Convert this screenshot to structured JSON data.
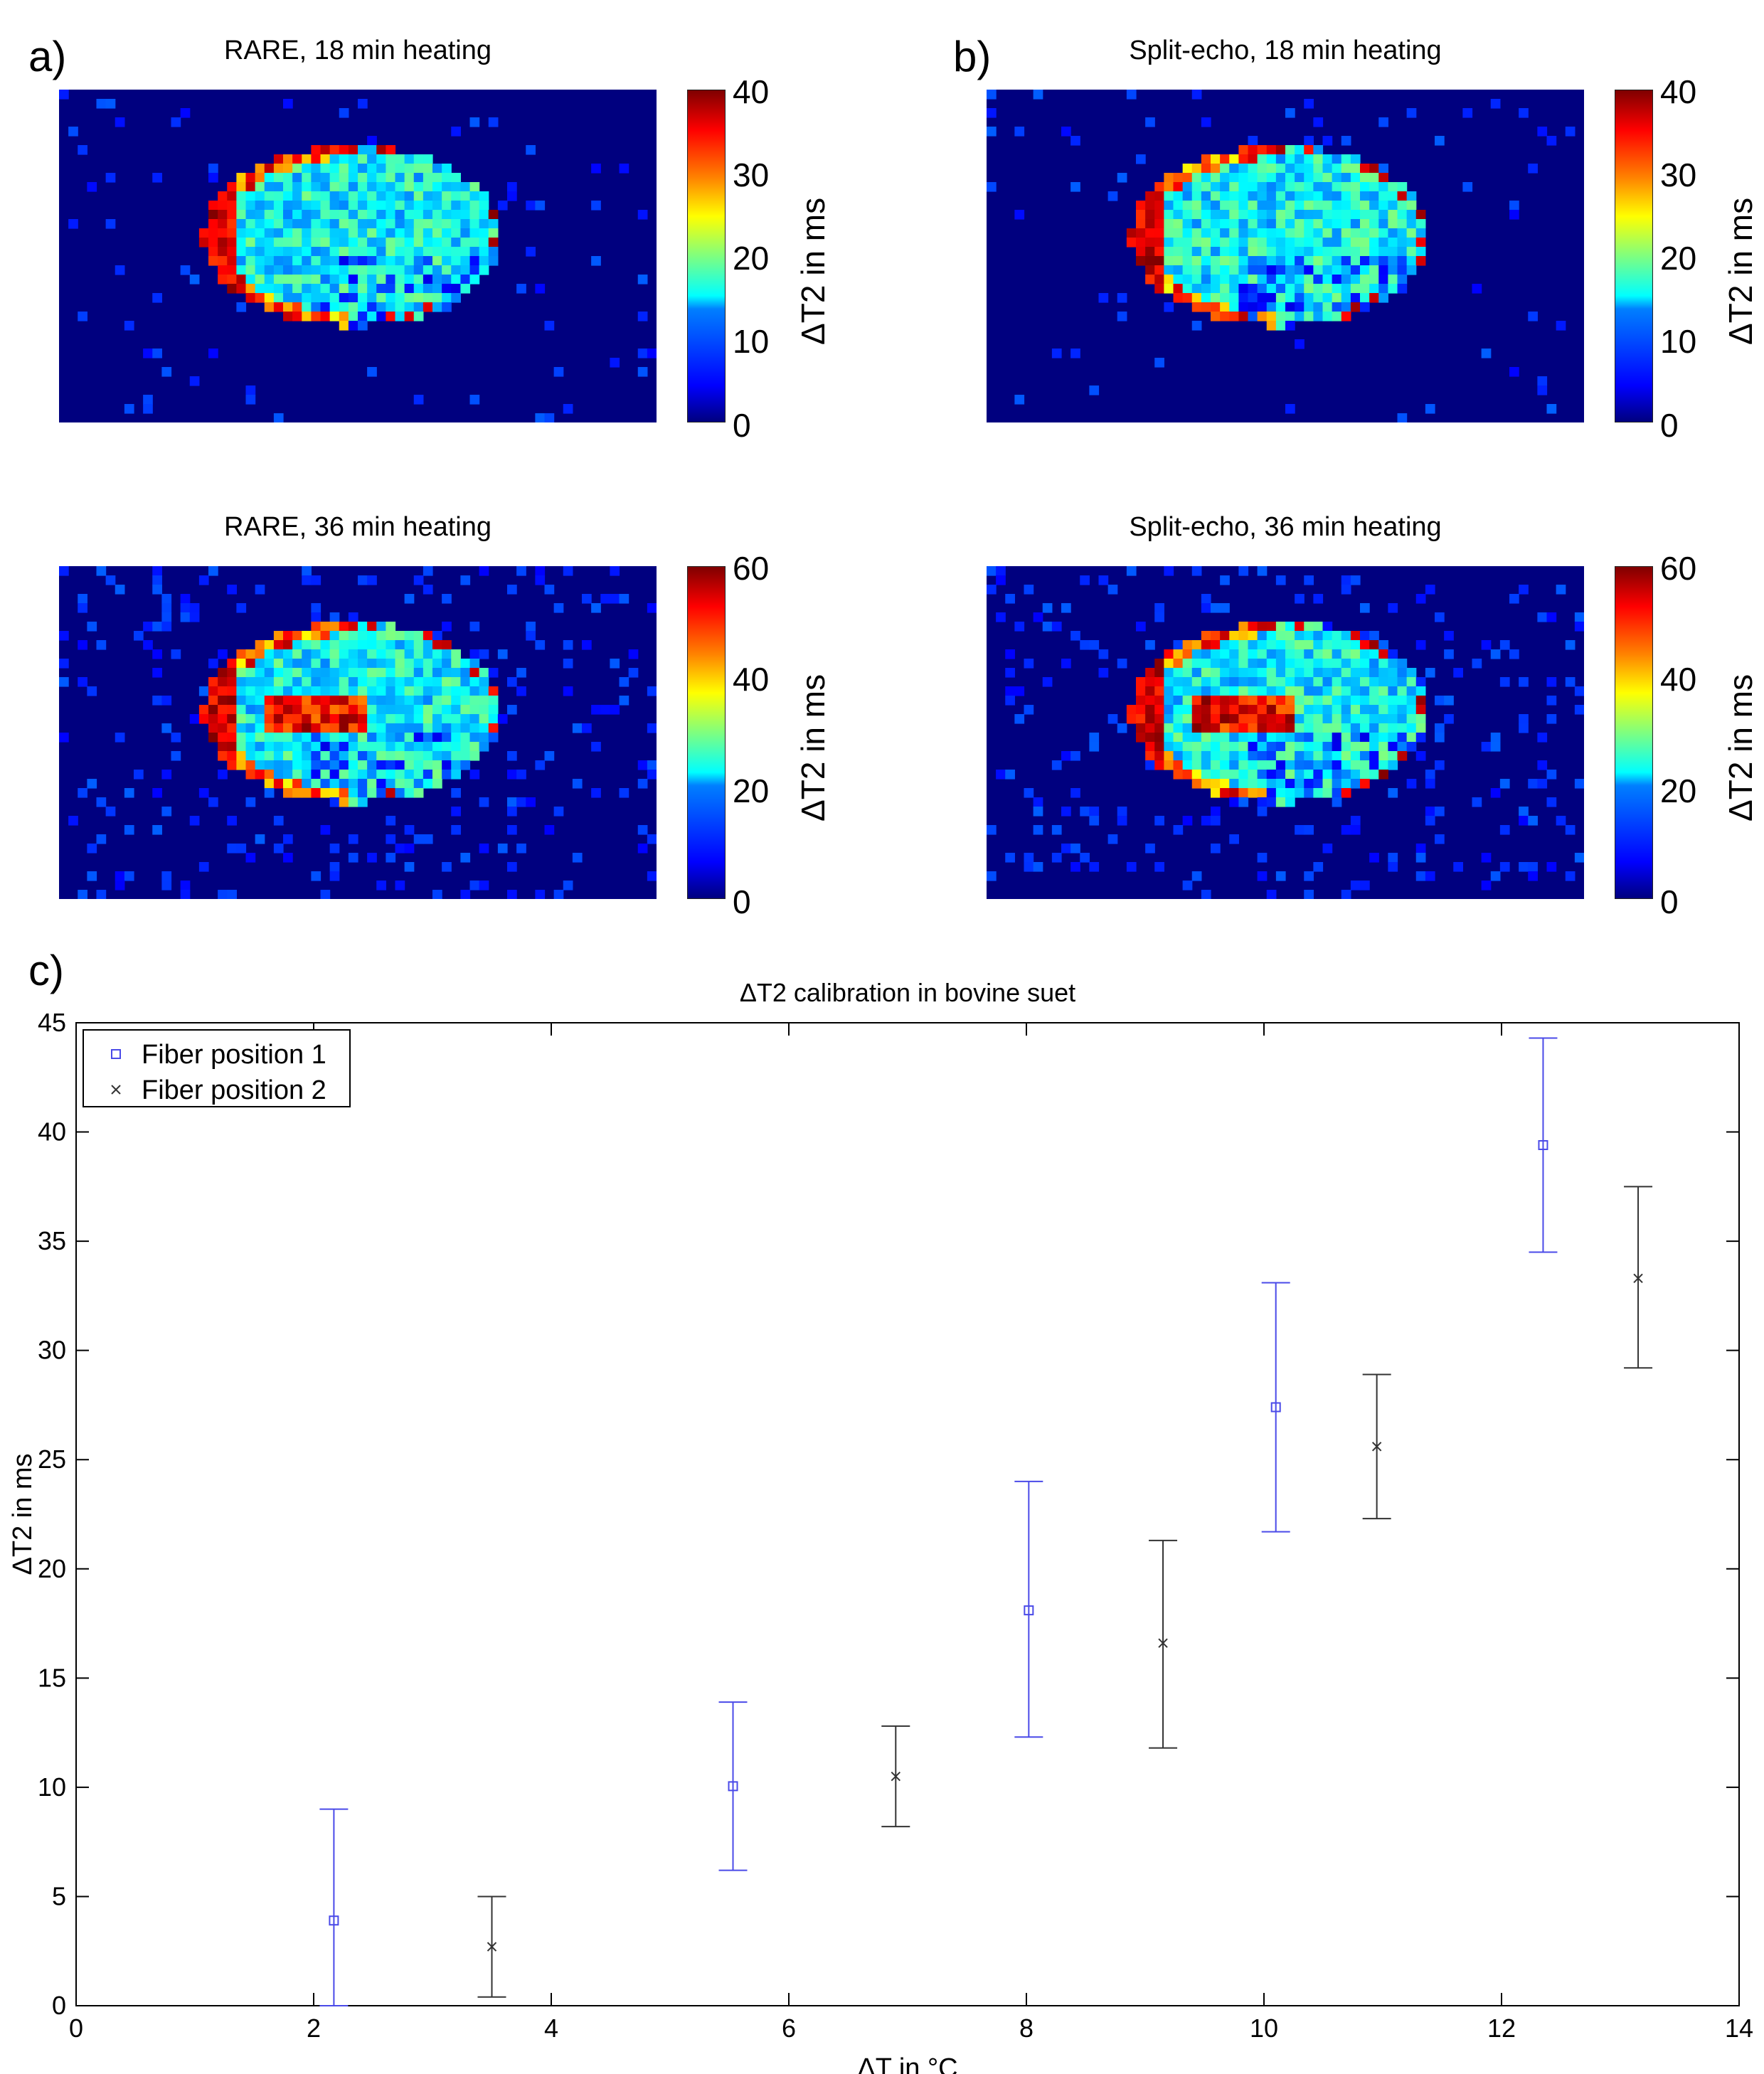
{
  "panels": {
    "a": {
      "letter": "a)"
    },
    "b": {
      "letter": "b)"
    },
    "c": {
      "letter": "c)"
    }
  },
  "maps": [
    {
      "id": "rare-18",
      "title": "RARE, 18 min heating",
      "colorbar": {
        "ticks": [
          "40",
          "30",
          "20",
          "10",
          "0"
        ],
        "label": "ΔT2 in ms"
      }
    },
    {
      "id": "split-18",
      "title": "Split-echo, 18 min heating",
      "colorbar": {
        "ticks": [
          "40",
          "30",
          "20",
          "10",
          "0"
        ],
        "label": "ΔT2 in ms"
      }
    },
    {
      "id": "rare-36",
      "title": "RARE, 36 min heating",
      "colorbar": {
        "ticks": [
          "60",
          "40",
          "20",
          "0"
        ],
        "label": "ΔT2 in ms"
      }
    },
    {
      "id": "split-36",
      "title": "Split-echo, 36 min heating",
      "colorbar": {
        "ticks": [
          "60",
          "40",
          "20",
          "0"
        ],
        "label": "ΔT2 in ms"
      }
    }
  ],
  "chart_data": {
    "type": "scatter",
    "title": "ΔT2 calibration in bovine suet",
    "xlabel": "ΔT in °C",
    "ylabel": "ΔT2 in ms",
    "xlim": [
      0,
      14
    ],
    "ylim": [
      0,
      45
    ],
    "xticks": [
      0,
      2,
      4,
      6,
      8,
      10,
      12,
      14
    ],
    "yticks": [
      0,
      5,
      10,
      15,
      20,
      25,
      30,
      35,
      40,
      45
    ],
    "grid": false,
    "legend_position": "top-left",
    "series": [
      {
        "name": "Fiber position 1",
        "marker": "square",
        "color": "#4a4ae8",
        "points": [
          {
            "x": 2.17,
            "y": 3.9,
            "low": 0,
            "high": 9.0
          },
          {
            "x": 5.53,
            "y": 10.05,
            "low": 6.2,
            "high": 13.9
          },
          {
            "x": 8.02,
            "y": 18.1,
            "low": 12.3,
            "high": 24.0
          },
          {
            "x": 10.1,
            "y": 27.4,
            "low": 21.7,
            "high": 33.1
          },
          {
            "x": 12.35,
            "y": 39.4,
            "low": 34.5,
            "high": 44.3
          }
        ]
      },
      {
        "name": "Fiber position 2",
        "marker": "x",
        "color": "#333333",
        "points": [
          {
            "x": 3.5,
            "y": 2.7,
            "low": 0.4,
            "high": 5.0
          },
          {
            "x": 6.9,
            "y": 10.5,
            "low": 8.2,
            "high": 12.8
          },
          {
            "x": 9.15,
            "y": 16.6,
            "low": 11.8,
            "high": 21.3
          },
          {
            "x": 10.95,
            "y": 25.6,
            "low": 22.3,
            "high": 28.9
          },
          {
            "x": 13.15,
            "y": 33.3,
            "low": 29.2,
            "high": 37.5
          }
        ]
      }
    ]
  }
}
